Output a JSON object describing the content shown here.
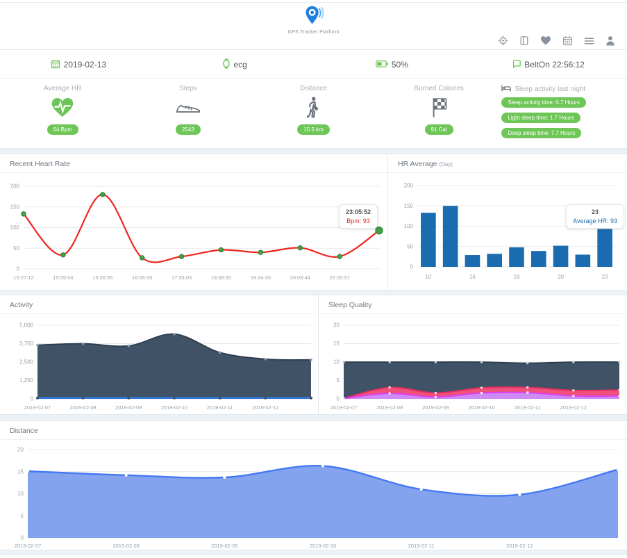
{
  "app": {
    "title": "GPS Tracker Platform"
  },
  "toolbar": {
    "icons": [
      "locate-icon",
      "map-icon",
      "heart-icon",
      "calendar-icon",
      "menu-icon",
      "user-icon"
    ]
  },
  "info_bar": {
    "date": "2019-02-13",
    "device_mode": "ecg",
    "battery": "50%",
    "belt_status": "BeltOn 22:56:12"
  },
  "stats": [
    {
      "label": "Average HR",
      "icon": "heart-ecg-icon",
      "badges": [
        "64 Bpm"
      ]
    },
    {
      "label": "Steps",
      "icon": "shoe-icon",
      "badges": [
        "2543"
      ]
    },
    {
      "label": "Distance",
      "icon": "walking-person-icon",
      "badges": [
        "15.5 km"
      ]
    },
    {
      "label": "Burned Caloires",
      "icon": "finish-flag-icon",
      "badges": [
        "91 Cal"
      ]
    },
    {
      "label": "Sleep activity last night",
      "icon": "bed-icon",
      "badges": [
        "Sleep activity time: 0.7 Hours",
        "Light sleep time: 1.7 Hours",
        "Deep sleep time: 7.7 Hours"
      ]
    }
  ],
  "colors": {
    "accent_green": "#6ec657",
    "hr_line_red": "#f0251f",
    "marker_green": "#43a047",
    "bar_blue": "#1a6bb0",
    "activity_fill": "#3f5266",
    "activity_baseline_blue": "#2f80ed",
    "sleep_pink": "#ef5179",
    "sleep_purple": "#cf8bf5",
    "distance_fill": "#83a3ee",
    "distance_line": "#4379f2"
  },
  "chart_data": [
    {
      "id": "recent-heart-rate",
      "type": "line",
      "title": "Recent Heart Rate",
      "x": [
        "10:27:12",
        "15:05:54",
        "15:26:55",
        "16:06:55",
        "17:35:03",
        "18:06:55",
        "19:34:33",
        "20:03:44",
        "22:05:57",
        "23:05:52"
      ],
      "x_axis_labels": [
        "10:27:12",
        "15:05:54",
        "15:26:55",
        "16:06:55",
        "17:35:03",
        "18:06:55",
        "19:34:33",
        "20:03:44",
        "22:05:57"
      ],
      "ylim": [
        0,
        200
      ],
      "yticks": [
        0,
        50,
        100,
        150,
        200
      ],
      "series": [
        {
          "name": "Bpm",
          "values": [
            133,
            34,
            180,
            27,
            30,
            46,
            40,
            51,
            30,
            93
          ],
          "color": "#f0251f",
          "width": 2.2,
          "fill": "none",
          "marker_color": "#43a047",
          "marker_stroke": "#2e7d32",
          "marker_r": 3.2,
          "last_marker_r": 5.2
        }
      ],
      "tooltip": {
        "title": "23:05:52",
        "label": "Bpm: 93"
      }
    },
    {
      "id": "hr-average",
      "type": "bar",
      "title": "HR Average",
      "title_suffix": "(Day)",
      "categories": [
        "10",
        "",
        "16",
        "",
        "18",
        "",
        "20",
        "",
        "23"
      ],
      "values": [
        133,
        150,
        29,
        32,
        48,
        39,
        52,
        30,
        93
      ],
      "bar_color": "#1a6bb0",
      "ylim": [
        0,
        200
      ],
      "yticks": [
        0,
        50,
        100,
        150,
        200
      ],
      "tooltip": {
        "title": "23",
        "label": "Average HR: 93"
      }
    },
    {
      "id": "activity",
      "type": "area",
      "title": "Activity",
      "x": [
        "2019-02-07",
        "2019-02-08",
        "2019-02-09",
        "2019-02-10",
        "2019-02-11",
        "2019-02-12",
        ""
      ],
      "ylim": [
        0,
        5000
      ],
      "yticks": [
        0,
        1250,
        2500,
        3750,
        5000
      ],
      "ytick_labels": [
        "0",
        "1,250",
        "2,500",
        "3,750",
        "5,000"
      ],
      "series": [
        {
          "name": "activity-area",
          "values": [
            3650,
            3750,
            3600,
            4400,
            3150,
            2700,
            2650
          ],
          "color": "#2b3b4d",
          "width": 1.8,
          "fill": "#3f5266",
          "marker_color": "#8f9aa6",
          "marker_r": 1.8
        },
        {
          "name": "activity-baseline",
          "values": [
            60,
            60,
            60,
            60,
            60,
            60,
            60
          ],
          "color": "#2f80ed",
          "width": 2.4,
          "fill": "none",
          "marker_color": "#3f5266",
          "marker_r": 2
        }
      ]
    },
    {
      "id": "sleep-quality",
      "type": "area",
      "title": "Sleep Quality",
      "x": [
        "2019-02-07",
        "2019-02-08",
        "2019-02-09",
        "2019-02-10",
        "2019-02-11",
        "2019-02-12",
        ""
      ],
      "ylim": [
        0,
        20
      ],
      "yticks": [
        0,
        5,
        10,
        15,
        20
      ],
      "series": [
        {
          "name": "deep-sleep",
          "values": [
            10,
            10,
            10,
            10,
            9.7,
            10,
            10
          ],
          "color": "#2b3b4d",
          "width": 1.8,
          "fill": "#3f5266",
          "marker_color": "#c9ced6",
          "marker_r": 1.7
        },
        {
          "name": "light-sleep",
          "values": [
            0.1,
            3.1,
            1.6,
            3.0,
            3.1,
            2.3,
            2.4
          ],
          "color": "#e82e62",
          "width": 2,
          "fill": "#ef5179",
          "marker_color": "#e8e8ea",
          "marker_r": 1.7
        },
        {
          "name": "sleep-activity",
          "values": [
            0.1,
            1.5,
            0.5,
            1.6,
            1.7,
            0.8,
            0.8
          ],
          "color": "#dd3ff0",
          "width": 2,
          "fill": "#cf8bf5",
          "marker_color": "#f2f2f2",
          "marker_r": 1.7
        }
      ]
    },
    {
      "id": "distance",
      "type": "area",
      "title": "Distance",
      "x": [
        "2019-02-07",
        "2019-02-08",
        "2019-02-09",
        "2019-02-10",
        "2019-02-11",
        "2019-02-12",
        ""
      ],
      "ylim": [
        0,
        20
      ],
      "yticks": [
        0,
        5,
        10,
        15,
        20
      ],
      "series": [
        {
          "name": "distance-area",
          "values": [
            15.1,
            14.2,
            13.7,
            16.3,
            11.0,
            9.8,
            15.5
          ],
          "color": "#4379f2",
          "width": 2.4,
          "fill": "#83a3ee",
          "marker_color": "#ffffff",
          "marker_r": 2
        }
      ]
    }
  ]
}
